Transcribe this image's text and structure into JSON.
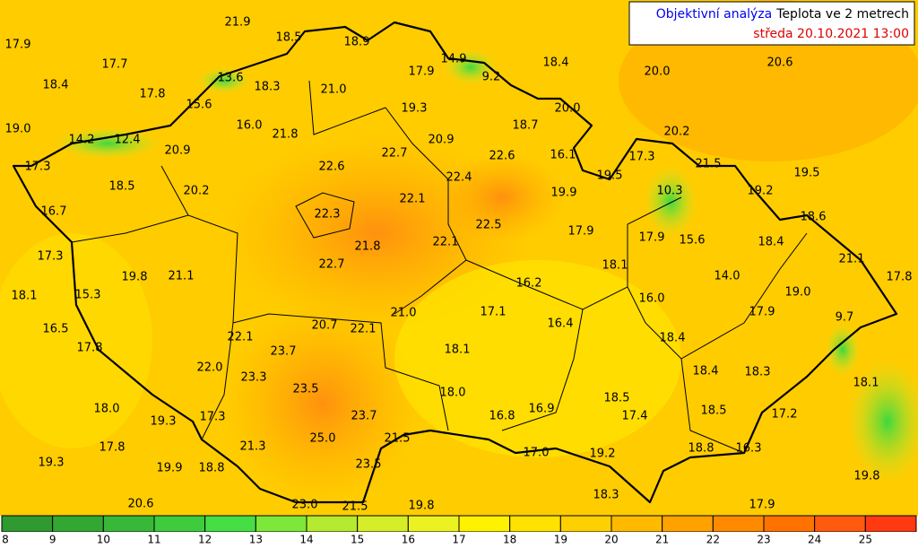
{
  "header": {
    "title_blue": "Objektivní analýza",
    "title_black": "Teplota ve 2 metrech",
    "date": "středa 20.10.2021 13:00"
  },
  "labels": [
    "17.9",
    "21.9",
    "18.5",
    "18.9",
    "14.9",
    "9.2",
    "18.4",
    "20.0",
    "20.6",
    "17.7",
    "18.4",
    "13.6",
    "17.8",
    "15.6",
    "18.3",
    "21.0",
    "17.9",
    "19.3",
    "18.7",
    "20.0",
    "19.0",
    "16.0",
    "21.8",
    "20.9",
    "20.2",
    "14.2",
    "12.4",
    "20.9",
    "22.6",
    "22.7",
    "22.6",
    "16.1",
    "17.3",
    "18.5",
    "20.2",
    "22.4",
    "19.9",
    "19.5",
    "17.3",
    "21.5",
    "19.5",
    "10.3",
    "19.2",
    "16.7",
    "22.3",
    "22.1",
    "22.5",
    "18.6",
    "22.1",
    "21.8",
    "17.9",
    "17.9",
    "15.6",
    "18.4",
    "17.3",
    "21.1",
    "22.7",
    "18.1",
    "19.8",
    "21.1",
    "16.2",
    "14.0",
    "17.8",
    "18.1",
    "15.3",
    "16.0",
    "19.0",
    "21.0",
    "17.1",
    "17.9",
    "9.7",
    "16.5",
    "20.7",
    "22.1",
    "16.4",
    "22.1",
    "18.4",
    "17.8",
    "18.1",
    "23.7",
    "22.0",
    "18.4",
    "18.3",
    "23.3",
    "18.1",
    "23.5",
    "18.0",
    "18.5",
    "18.0",
    "16.9",
    "18.5",
    "17.3",
    "19.3",
    "23.7",
    "16.8",
    "17.4",
    "17.2",
    "25.0",
    "21.5",
    "17.8",
    "21.3",
    "17.0",
    "19.2",
    "18.8",
    "16.3",
    "19.3",
    "19.9",
    "18.8",
    "23.5",
    "19.8",
    "18.3",
    "20.6",
    "23.0",
    "21.5",
    "19.8",
    "17.9"
  ],
  "colorbar": {
    "ticks": [
      "8",
      "9",
      "10",
      "11",
      "12",
      "13",
      "14",
      "15",
      "16",
      "17",
      "18",
      "19",
      "20",
      "21",
      "22",
      "23",
      "24",
      "25"
    ],
    "colors": [
      "#2f9a2f",
      "#32a832",
      "#38b838",
      "#3ecb3e",
      "#45de45",
      "#7de83a",
      "#b4ea30",
      "#d6ee28",
      "#ecf222",
      "#fff200",
      "#ffe200",
      "#ffd000",
      "#ffba00",
      "#ffa200",
      "#ff8a00",
      "#ff7200",
      "#ff5a10",
      "#ff3a10"
    ]
  }
}
